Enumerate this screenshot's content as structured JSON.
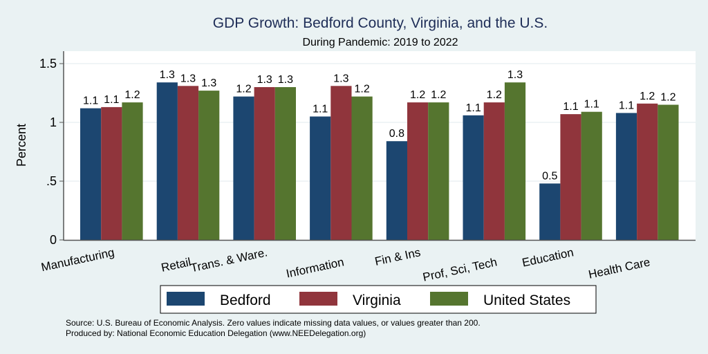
{
  "chart_data": {
    "type": "bar",
    "title": "GDP Growth: Bedford County, Virginia, and the U.S.",
    "subtitle": "During Pandemic: 2019 to 2022",
    "xlabel": "",
    "ylabel": "Percent",
    "ylim": [
      0,
      1.6
    ],
    "yticks": [
      0,
      0.5,
      1,
      1.5
    ],
    "ytick_labels": [
      "0",
      ".5",
      "1",
      "1.5"
    ],
    "grid": true,
    "legend_position": "bottom",
    "categories": [
      "Manufacturing",
      "Retail",
      "Trans. & Ware.",
      "Information",
      "Fin & Ins",
      "Prof, Sci, Tech",
      "Education",
      "Health Care"
    ],
    "series": [
      {
        "name": "Bedford",
        "color": "#1c4670",
        "values": [
          1.12,
          1.34,
          1.22,
          1.05,
          0.84,
          1.06,
          0.48,
          1.08
        ],
        "labels": [
          "1.1",
          "1.3",
          "1.2",
          "1.1",
          "0.8",
          "1.1",
          "0.5",
          "1.1"
        ]
      },
      {
        "name": "Virginia",
        "color": "#90353c",
        "values": [
          1.13,
          1.31,
          1.3,
          1.31,
          1.17,
          1.17,
          1.07,
          1.16
        ],
        "labels": [
          "1.1",
          "1.3",
          "1.3",
          "1.3",
          "1.2",
          "1.2",
          "1.1",
          "1.2"
        ]
      },
      {
        "name": "United States",
        "color": "#55752f",
        "values": [
          1.17,
          1.27,
          1.3,
          1.22,
          1.17,
          1.34,
          1.09,
          1.15
        ],
        "labels": [
          "1.2",
          "1.3",
          "1.3",
          "1.2",
          "1.2",
          "1.3",
          "1.1",
          "1.2"
        ]
      }
    ],
    "notes": [
      "Source: U.S. Bureau of Economic Analysis. Zero values indicate missing data values, or values greater than 200.",
      "Produced by: National Economic Education Delegation (www.NEEDelegation.org)"
    ]
  }
}
